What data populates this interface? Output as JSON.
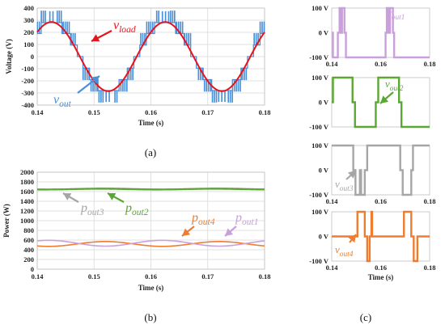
{
  "chart_data": [
    {
      "id": "a",
      "type": "line",
      "caption": "(a)",
      "xlabel": "Time (s)",
      "ylabel": "Voltage (V)",
      "xlim": [
        0.14,
        0.18
      ],
      "ylim": [
        -400,
        400
      ],
      "xticks": [
        "0.14",
        "0.15",
        "0.16",
        "0.17",
        "0.18"
      ],
      "yticks": [
        "400",
        "300",
        "200",
        "100",
        "0",
        "-100",
        "-200",
        "-300",
        "-400"
      ],
      "grid": true,
      "series": [
        {
          "name": "v_out",
          "label_main": "v",
          "label_sub": "out",
          "color": "#4a90d9",
          "style": "staircase",
          "period": 0.02,
          "amplitude": 280,
          "levels": [
            -280,
            -190,
            -95,
            0,
            95,
            190,
            280
          ],
          "peak": 370
        },
        {
          "name": "v_load",
          "label_main": "v",
          "label_sub": "load",
          "color": "#e8121c",
          "style": "sine",
          "period": 0.02,
          "amplitude": 285
        }
      ]
    },
    {
      "id": "b",
      "type": "line",
      "caption": "(b)",
      "xlabel": "Time (s)",
      "ylabel": "Power (W)",
      "xlim": [
        0.14,
        0.18
      ],
      "ylim": [
        0,
        2000
      ],
      "xticks": [
        "0.14",
        "0.15",
        "0.16",
        "0.17",
        "0.18"
      ],
      "yticks": [
        "2000",
        "1800",
        "1600",
        "1400",
        "1200",
        "1000",
        "800",
        "600",
        "400",
        "200",
        "0"
      ],
      "grid": true,
      "series": [
        {
          "name": "p_out3",
          "label_main": "p",
          "label_sub": "out3",
          "color": "#a6a6a6",
          "mean": 1655,
          "amp": 10
        },
        {
          "name": "p_out2",
          "label_main": "p",
          "label_sub": "out2",
          "color": "#5aa832",
          "mean": 1650,
          "amp": 8
        },
        {
          "name": "p_out4",
          "label_main": "p",
          "label_sub": "out4",
          "color": "#ed7d31",
          "mean": 520,
          "amp": 50
        },
        {
          "name": "p_out1",
          "label_main": "p",
          "label_sub": "out1",
          "color": "#c9a0dc",
          "mean": 535,
          "amp": 60
        }
      ]
    },
    {
      "id": "c1",
      "type": "line",
      "xlim": [
        0.14,
        0.18
      ],
      "ylim": [
        -100,
        100
      ],
      "xticks": [
        "0.14",
        "0.16",
        "0.18"
      ],
      "yticks": [
        "100 V",
        "0 V",
        "-100 V"
      ],
      "series": [
        {
          "name": "v_out1",
          "label_main": "v",
          "label_sub": "out1",
          "color": "#c9a0dc"
        }
      ]
    },
    {
      "id": "c2",
      "type": "line",
      "xlim": [
        0.14,
        0.18
      ],
      "ylim": [
        -100,
        100
      ],
      "yticks": [
        "100 V",
        "0 V",
        "-100 V"
      ],
      "series": [
        {
          "name": "v_out2",
          "label_main": "v",
          "label_sub": "out2",
          "color": "#5aa832"
        }
      ]
    },
    {
      "id": "c3",
      "type": "line",
      "xlim": [
        0.14,
        0.18
      ],
      "ylim": [
        -100,
        100
      ],
      "xticks": [
        "0.14",
        "0.16",
        "0.18"
      ],
      "yticks": [
        "100 V",
        "0 V",
        "-100 V"
      ],
      "series": [
        {
          "name": "v_out3",
          "label_main": "v",
          "label_sub": "out3",
          "color": "#a6a6a6"
        }
      ]
    },
    {
      "id": "c4",
      "type": "line",
      "xlim": [
        0.14,
        0.18
      ],
      "ylim": [
        -100,
        100
      ],
      "xticks": [
        "0.14",
        "0.16",
        "0.18"
      ],
      "yticks": [
        "100 V",
        "0 V",
        "-100 V"
      ],
      "xlabel": "Time (s)",
      "caption": "(c)",
      "series": [
        {
          "name": "v_out4",
          "label_main": "v",
          "label_sub": "out4",
          "color": "#ed7d31"
        }
      ]
    }
  ]
}
